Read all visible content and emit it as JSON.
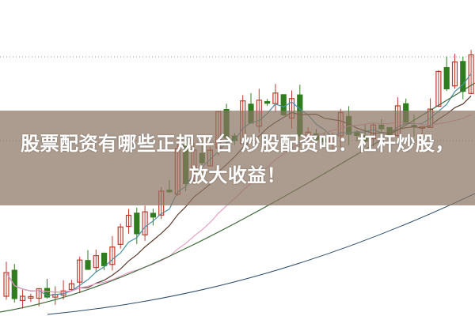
{
  "title": {
    "line1": "股票配资有哪些正规平台 炒股配资吧：杠杆炒股，",
    "line2": "放大收益！"
  },
  "colors": {
    "up_candle": "#c0392b",
    "down_candle": "#2e7d1e",
    "ma_fast": "#4a90a4",
    "ma_mid": "#5a3a2a",
    "ma_pink": "#e8a0c8",
    "ma_slow": "#3f6b3a",
    "overlay_band": "#8c7664"
  }
}
